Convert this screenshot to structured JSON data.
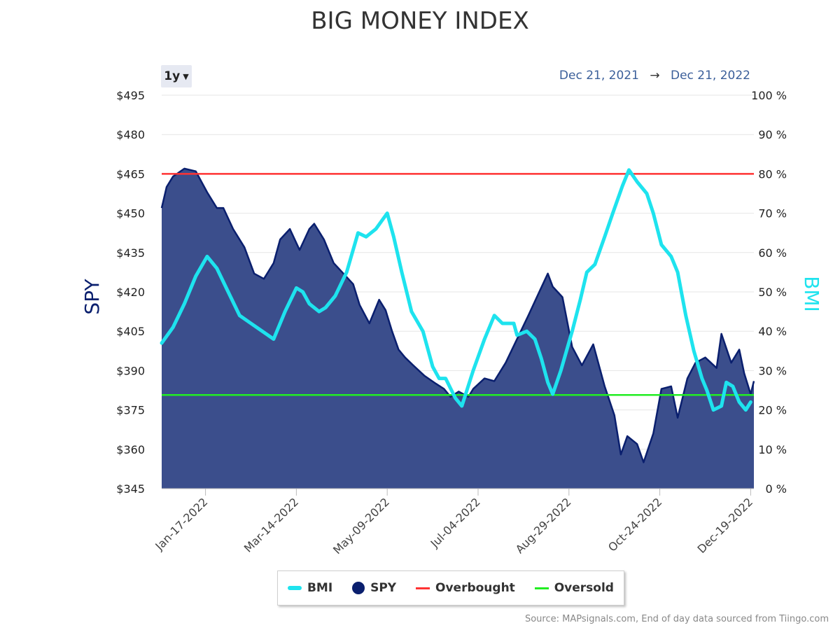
{
  "title": "BIG MONEY INDEX",
  "range_selector": {
    "label": "1y"
  },
  "date_range": {
    "from": "Dec 21, 2021",
    "arrow": "→",
    "to": "Dec 21, 2022"
  },
  "source": "Source: MAPsignals.com, End of day data sourced from Tiingo.com",
  "legend": [
    {
      "name": "BMI",
      "color": "#1ee3ee",
      "symbol": "line"
    },
    {
      "name": "SPY",
      "color": "#0a1f6e",
      "symbol": "dot"
    },
    {
      "name": "Overbought",
      "color": "#ff3333",
      "symbol": "line"
    },
    {
      "name": "Oversold",
      "color": "#22ee22",
      "symbol": "line"
    }
  ],
  "chart_data": {
    "type": "line",
    "title": "BIG MONEY INDEX",
    "x_range": [
      "2021-12-21",
      "2022-12-21"
    ],
    "x_ticks": [
      "Jan-17-2022",
      "Mar-14-2022",
      "May-09-2022",
      "Jul-04-2022",
      "Aug-29-2022",
      "Oct-24-2022",
      "Dec-19-2022"
    ],
    "y_left": {
      "label": "SPY",
      "min": 345,
      "max": 495,
      "ticks": [
        "$495",
        "$480",
        "$465",
        "$450",
        "$435",
        "$420",
        "$405",
        "$390",
        "$375",
        "$360",
        "$345"
      ]
    },
    "y_right": {
      "label": "BMI",
      "min": 0,
      "max": 100,
      "ticks": [
        "100 %",
        "90 %",
        "80 %",
        "70 %",
        "60 %",
        "50 %",
        "40 %",
        "30 %",
        "20 %",
        "10 %",
        "0 %"
      ]
    },
    "grid": true,
    "legend_position": "bottom",
    "overbought": 80,
    "oversold": 23.8,
    "series": [
      {
        "name": "SPY",
        "type": "area",
        "axis": "left",
        "color": "#0a1f6e",
        "fill": "#3b4e8c",
        "points": [
          [
            "2021-12-21",
            452
          ],
          [
            "2021-12-24",
            460
          ],
          [
            "2021-12-28",
            464
          ],
          [
            "2022-01-04",
            467
          ],
          [
            "2022-01-11",
            466
          ],
          [
            "2022-01-18",
            458
          ],
          [
            "2022-01-24",
            452
          ],
          [
            "2022-01-28",
            452
          ],
          [
            "2022-02-03",
            444
          ],
          [
            "2022-02-10",
            437
          ],
          [
            "2022-02-16",
            427
          ],
          [
            "2022-02-22",
            425
          ],
          [
            "2022-02-28",
            431
          ],
          [
            "2022-03-04",
            440
          ],
          [
            "2022-03-10",
            444
          ],
          [
            "2022-03-16",
            436
          ],
          [
            "2022-03-22",
            444
          ],
          [
            "2022-03-25",
            446
          ],
          [
            "2022-03-31",
            440
          ],
          [
            "2022-04-06",
            431
          ],
          [
            "2022-04-12",
            427
          ],
          [
            "2022-04-18",
            423
          ],
          [
            "2022-04-22",
            415
          ],
          [
            "2022-04-28",
            408
          ],
          [
            "2022-05-04",
            417
          ],
          [
            "2022-05-08",
            413
          ],
          [
            "2022-05-12",
            405
          ],
          [
            "2022-05-16",
            398
          ],
          [
            "2022-05-20",
            395
          ],
          [
            "2022-05-25",
            392
          ],
          [
            "2022-06-01",
            388
          ],
          [
            "2022-06-08",
            385
          ],
          [
            "2022-06-13",
            383
          ],
          [
            "2022-06-17",
            380
          ],
          [
            "2022-06-22",
            382
          ],
          [
            "2022-06-28",
            380
          ],
          [
            "2022-07-01",
            383
          ],
          [
            "2022-07-08",
            387
          ],
          [
            "2022-07-14",
            386
          ],
          [
            "2022-07-21",
            393
          ],
          [
            "2022-07-28",
            402
          ],
          [
            "2022-08-04",
            411
          ],
          [
            "2022-08-10",
            419
          ],
          [
            "2022-08-16",
            427
          ],
          [
            "2022-08-19",
            422
          ],
          [
            "2022-08-25",
            418
          ],
          [
            "2022-08-31",
            399
          ],
          [
            "2022-09-06",
            392
          ],
          [
            "2022-09-13",
            400
          ],
          [
            "2022-09-20",
            384
          ],
          [
            "2022-09-26",
            373
          ],
          [
            "2022-09-30",
            358
          ],
          [
            "2022-10-04",
            365
          ],
          [
            "2022-10-10",
            362
          ],
          [
            "2022-10-14",
            355
          ],
          [
            "2022-10-20",
            366
          ],
          [
            "2022-10-25",
            383
          ],
          [
            "2022-10-31",
            384
          ],
          [
            "2022-11-04",
            372
          ],
          [
            "2022-11-10",
            387
          ],
          [
            "2022-11-15",
            393
          ],
          [
            "2022-11-21",
            395
          ],
          [
            "2022-11-28",
            391
          ],
          [
            "2022-12-01",
            404
          ],
          [
            "2022-12-07",
            393
          ],
          [
            "2022-12-12",
            398
          ],
          [
            "2022-12-15",
            389
          ],
          [
            "2022-12-19",
            381
          ],
          [
            "2022-12-21",
            386
          ]
        ]
      },
      {
        "name": "BMI",
        "type": "line",
        "axis": "right",
        "color": "#1ee3ee",
        "points": [
          [
            "2021-12-21",
            37
          ],
          [
            "2021-12-28",
            41
          ],
          [
            "2022-01-04",
            47
          ],
          [
            "2022-01-11",
            54
          ],
          [
            "2022-01-18",
            59
          ],
          [
            "2022-01-24",
            56
          ],
          [
            "2022-01-31",
            50
          ],
          [
            "2022-02-07",
            44
          ],
          [
            "2022-02-14",
            42
          ],
          [
            "2022-02-21",
            40
          ],
          [
            "2022-02-28",
            38
          ],
          [
            "2022-03-07",
            45
          ],
          [
            "2022-03-14",
            51
          ],
          [
            "2022-03-18",
            50
          ],
          [
            "2022-03-22",
            47
          ],
          [
            "2022-03-28",
            45
          ],
          [
            "2022-04-01",
            46
          ],
          [
            "2022-04-07",
            49
          ],
          [
            "2022-04-14",
            55
          ],
          [
            "2022-04-21",
            65
          ],
          [
            "2022-04-26",
            64
          ],
          [
            "2022-05-02",
            66
          ],
          [
            "2022-05-09",
            70
          ],
          [
            "2022-05-13",
            64
          ],
          [
            "2022-05-18",
            55
          ],
          [
            "2022-05-24",
            45
          ],
          [
            "2022-05-31",
            40
          ],
          [
            "2022-06-06",
            31
          ],
          [
            "2022-06-10",
            28
          ],
          [
            "2022-06-14",
            28
          ],
          [
            "2022-06-20",
            23
          ],
          [
            "2022-06-24",
            21
          ],
          [
            "2022-07-01",
            30
          ],
          [
            "2022-07-08",
            38
          ],
          [
            "2022-07-14",
            44
          ],
          [
            "2022-07-19",
            42
          ],
          [
            "2022-07-26",
            42
          ],
          [
            "2022-07-28",
            39
          ],
          [
            "2022-08-03",
            40
          ],
          [
            "2022-08-08",
            38
          ],
          [
            "2022-08-12",
            33
          ],
          [
            "2022-08-16",
            27
          ],
          [
            "2022-08-19",
            24
          ],
          [
            "2022-08-24",
            30
          ],
          [
            "2022-08-31",
            40
          ],
          [
            "2022-09-05",
            48
          ],
          [
            "2022-09-09",
            55
          ],
          [
            "2022-09-14",
            57
          ],
          [
            "2022-09-20",
            64
          ],
          [
            "2022-09-25",
            70
          ],
          [
            "2022-10-01",
            77
          ],
          [
            "2022-10-05",
            81
          ],
          [
            "2022-10-10",
            78
          ],
          [
            "2022-10-16",
            75
          ],
          [
            "2022-10-20",
            70
          ],
          [
            "2022-10-25",
            62
          ],
          [
            "2022-10-31",
            59
          ],
          [
            "2022-11-04",
            55
          ],
          [
            "2022-11-09",
            44
          ],
          [
            "2022-11-14",
            35
          ],
          [
            "2022-11-19",
            28
          ],
          [
            "2022-11-22",
            25
          ],
          [
            "2022-11-26",
            20
          ],
          [
            "2022-12-01",
            21
          ],
          [
            "2022-12-04",
            27
          ],
          [
            "2022-12-08",
            26
          ],
          [
            "2022-12-12",
            22
          ],
          [
            "2022-12-16",
            20
          ],
          [
            "2022-12-19",
            22
          ]
        ]
      }
    ]
  }
}
